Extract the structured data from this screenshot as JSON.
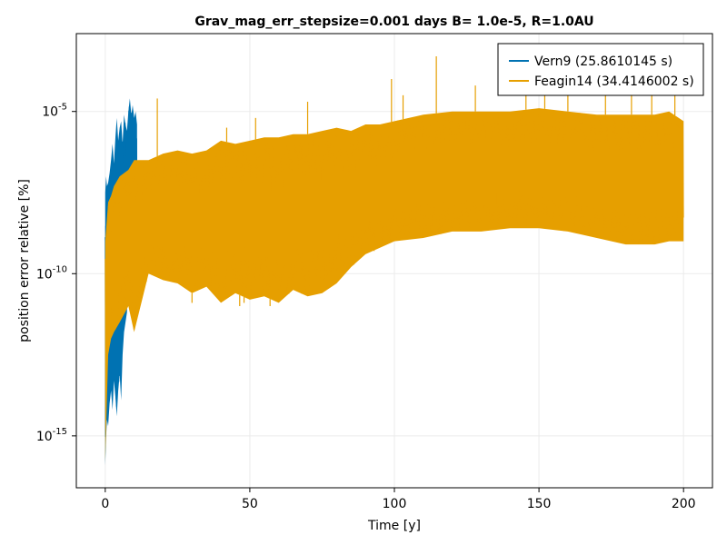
{
  "chart_data": {
    "type": "line",
    "title": "Grav_mag_err_stepsize=0.001 days B= 1.0e-5, R=1.0AU",
    "xlabel": "Time [y]",
    "ylabel": "position error relative [%]",
    "xlim": [
      -10,
      210
    ],
    "ylim_log10": [
      -16.6,
      -2.6
    ],
    "y_scale": "log",
    "grid": true,
    "legend_position": "top-right",
    "x_ticks": [
      {
        "value": 0,
        "label": "0"
      },
      {
        "value": 50,
        "label": "50"
      },
      {
        "value": 100,
        "label": "100"
      },
      {
        "value": 150,
        "label": "150"
      },
      {
        "value": 200,
        "label": "200"
      }
    ],
    "y_ticks": [
      {
        "log10": -15,
        "base": "10",
        "exp": "-15"
      },
      {
        "log10": -10,
        "base": "10",
        "exp": "-10"
      },
      {
        "log10": -5,
        "base": "10",
        "exp": "-5"
      }
    ],
    "series": [
      {
        "name": "Vern9 (25.8610145 s)",
        "color": "#0072b2",
        "note": "approximate envelope, log10 of error",
        "x": [
          0.0,
          0.3,
          0.6,
          1.0,
          1.5,
          2.0,
          2.5,
          3.0,
          3.5,
          4.0,
          4.5,
          5.0,
          5.5,
          6.0,
          6.5,
          7.0,
          7.5,
          8.0,
          8.5,
          9.0,
          9.5,
          10.0,
          10.5,
          11.0
        ],
        "upper": [
          -7.5,
          -7.0,
          -7.3,
          -7.2,
          -6.9,
          -6.5,
          -6.0,
          -6.6,
          -5.8,
          -5.2,
          -5.9,
          -5.5,
          -5.3,
          -6.0,
          -5.1,
          -5.4,
          -5.6,
          -5.0,
          -4.6,
          -5.1,
          -4.8,
          -5.2,
          -5.0,
          -5.4
        ],
        "lower": [
          -15.9,
          -15.0,
          -14.5,
          -14.7,
          -14.0,
          -13.6,
          -14.2,
          -13.3,
          -13.8,
          -14.4,
          -13.6,
          -13.1,
          -13.9,
          -12.5,
          -11.8,
          -11.5,
          -11.2,
          -9.5,
          -9.8,
          -9.0,
          -8.8,
          -8.6,
          -8.5,
          -8.4
        ]
      },
      {
        "name": "Feagin14 (34.4146002 s)",
        "color": "#e69f00",
        "note": "approximate envelope, log10 of error",
        "x": [
          0,
          1,
          2,
          3,
          5,
          8,
          10,
          15,
          20,
          25,
          30,
          35,
          40,
          45,
          50,
          55,
          60,
          65,
          70,
          75,
          80,
          85,
          90,
          95,
          100,
          110,
          120,
          130,
          140,
          150,
          160,
          170,
          180,
          190,
          195,
          200
        ],
        "upper": [
          -9.0,
          -7.8,
          -7.6,
          -7.3,
          -7.0,
          -6.8,
          -6.5,
          -6.5,
          -6.3,
          -6.2,
          -6.3,
          -6.2,
          -5.9,
          -6.0,
          -5.9,
          -5.8,
          -5.8,
          -5.7,
          -5.7,
          -5.6,
          -5.5,
          -5.6,
          -5.4,
          -5.4,
          -5.3,
          -5.1,
          -5.0,
          -5.0,
          -5.0,
          -4.9,
          -5.0,
          -5.1,
          -5.1,
          -5.1,
          -5.0,
          -5.3
        ],
        "lower": [
          -15.8,
          -12.5,
          -12.0,
          -11.8,
          -11.5,
          -11.0,
          -11.8,
          -10.0,
          -10.2,
          -10.3,
          -10.6,
          -10.4,
          -10.9,
          -10.6,
          -10.8,
          -10.7,
          -10.9,
          -10.5,
          -10.7,
          -10.6,
          -10.3,
          -9.8,
          -9.4,
          -9.2,
          -9.0,
          -8.9,
          -8.7,
          -8.7,
          -8.6,
          -8.6,
          -8.7,
          -8.9,
          -9.1,
          -9.1,
          -9.0,
          -9.0
        ],
        "spikes": [
          {
            "x": 30,
            "log10": -10.9
          },
          {
            "x": 46.5,
            "log10": -11.0
          },
          {
            "x": 48,
            "log10": -10.9
          },
          {
            "x": 57,
            "log10": -11.0
          },
          {
            "x": 63.5,
            "log10": -10.6
          },
          {
            "x": 68,
            "log10": -10.6
          },
          {
            "x": 86,
            "log10": -9.5
          },
          {
            "x": 93,
            "log10": -9.3
          },
          {
            "x": 114.5,
            "log10": -3.3
          },
          {
            "x": 145.5,
            "log10": -3.4
          },
          {
            "x": 173,
            "log10": -3.6
          },
          {
            "x": 182,
            "log10": -3.6
          },
          {
            "x": 42,
            "log10": -5.5
          },
          {
            "x": 52,
            "log10": -5.2
          },
          {
            "x": 70,
            "log10": -4.7
          },
          {
            "x": 99,
            "log10": -4.0
          },
          {
            "x": 103,
            "log10": -4.5
          },
          {
            "x": 128,
            "log10": -4.2
          },
          {
            "x": 152,
            "log10": -4.1
          },
          {
            "x": 160,
            "log10": -4.0
          },
          {
            "x": 189,
            "log10": -4.1
          },
          {
            "x": 197,
            "log10": -4.4
          },
          {
            "x": 18,
            "log10": -4.6
          }
        ]
      }
    ]
  }
}
